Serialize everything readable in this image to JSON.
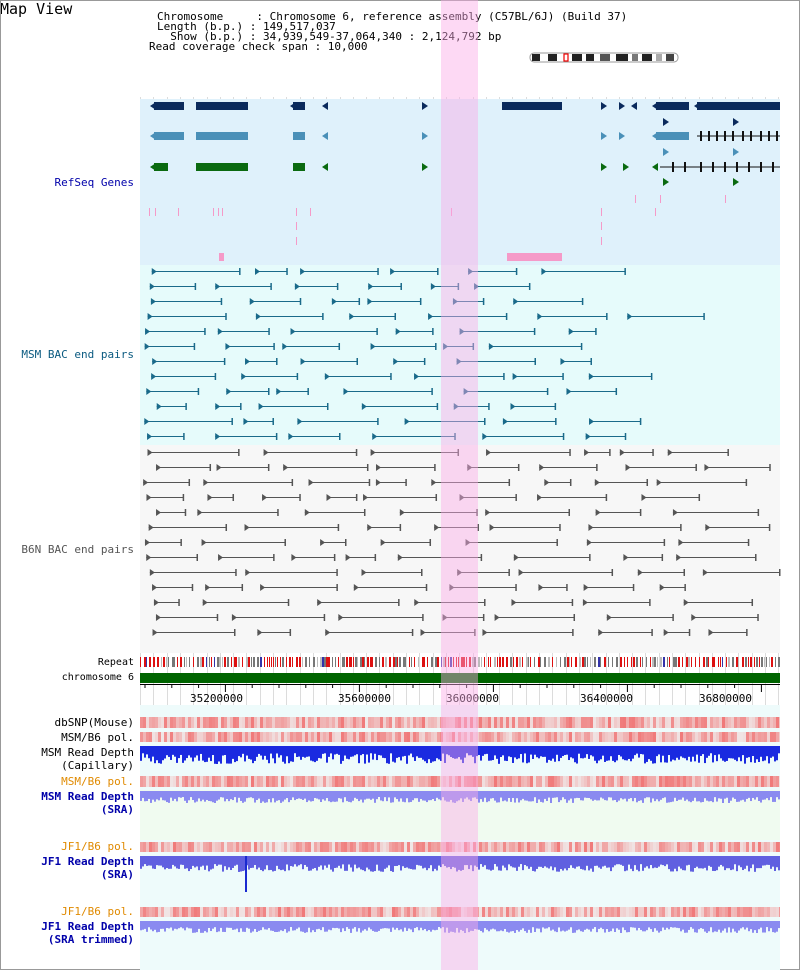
{
  "title": "Map View",
  "header": {
    "chromosome_line": "Chromosome     : Chromosome 6, reference assembly (C57BL/6J) (Build 37)",
    "length_line": "Length (b.p.) : 149,517,037",
    "show_line": "  Show (b.p.) : 34,939,549-37,064,340 : 2,124,792 bp",
    "coverage_line": "Read coverage check span : 10,000"
  },
  "tracks": {
    "refseq": "RefSeq Genes",
    "msm_bac": "MSM BAC end pairs",
    "b6n_bac": "B6N BAC end pairs",
    "repeat": "Repeat",
    "chromosome": "chromosome 6",
    "dbsnp": "dbSNP(Mouse)",
    "msm_b6_pol_1": "MSM/B6 pol.",
    "msm_depth_cap_1": "MSM Read Depth",
    "msm_depth_cap_2": "(Capillary)",
    "msm_b6_pol_2": "MSM/B6 pol.",
    "msm_depth_sra_1": "MSM Read Depth",
    "msm_depth_sra_2": "(SRA)",
    "jf1_b6_pol_1": "JF1/B6 pol.",
    "jf1_depth_sra_1": "JF1 Read Depth",
    "jf1_depth_sra_2": "(SRA)",
    "jf1_b6_pol_2": "JF1/B6 pol.",
    "jf1_depth_trim_1": "JF1 Read Depth",
    "jf1_depth_trim_2": "(SRA trimmed)"
  },
  "axis": {
    "ticks": [
      "35200000",
      "35600000",
      "36000000",
      "36400000",
      "36800000"
    ]
  },
  "colors": {
    "refseq_bg": "#dff1fb",
    "msm_bg": "#e6fbfb",
    "b6n_bg": "#f7f7f7",
    "gene_dark": "#0a2a5c",
    "gene_mid": "#4a90b8",
    "gene_green": "#0a6a10",
    "bac_msm": "#1a6a8a",
    "bac_b6n": "#555555",
    "chromosome": "#006400",
    "label_blue": "#0000aa",
    "label_teal": "#0a5a80",
    "label_orange": "#e08a00",
    "highlight": "#f9c0ec"
  }
}
